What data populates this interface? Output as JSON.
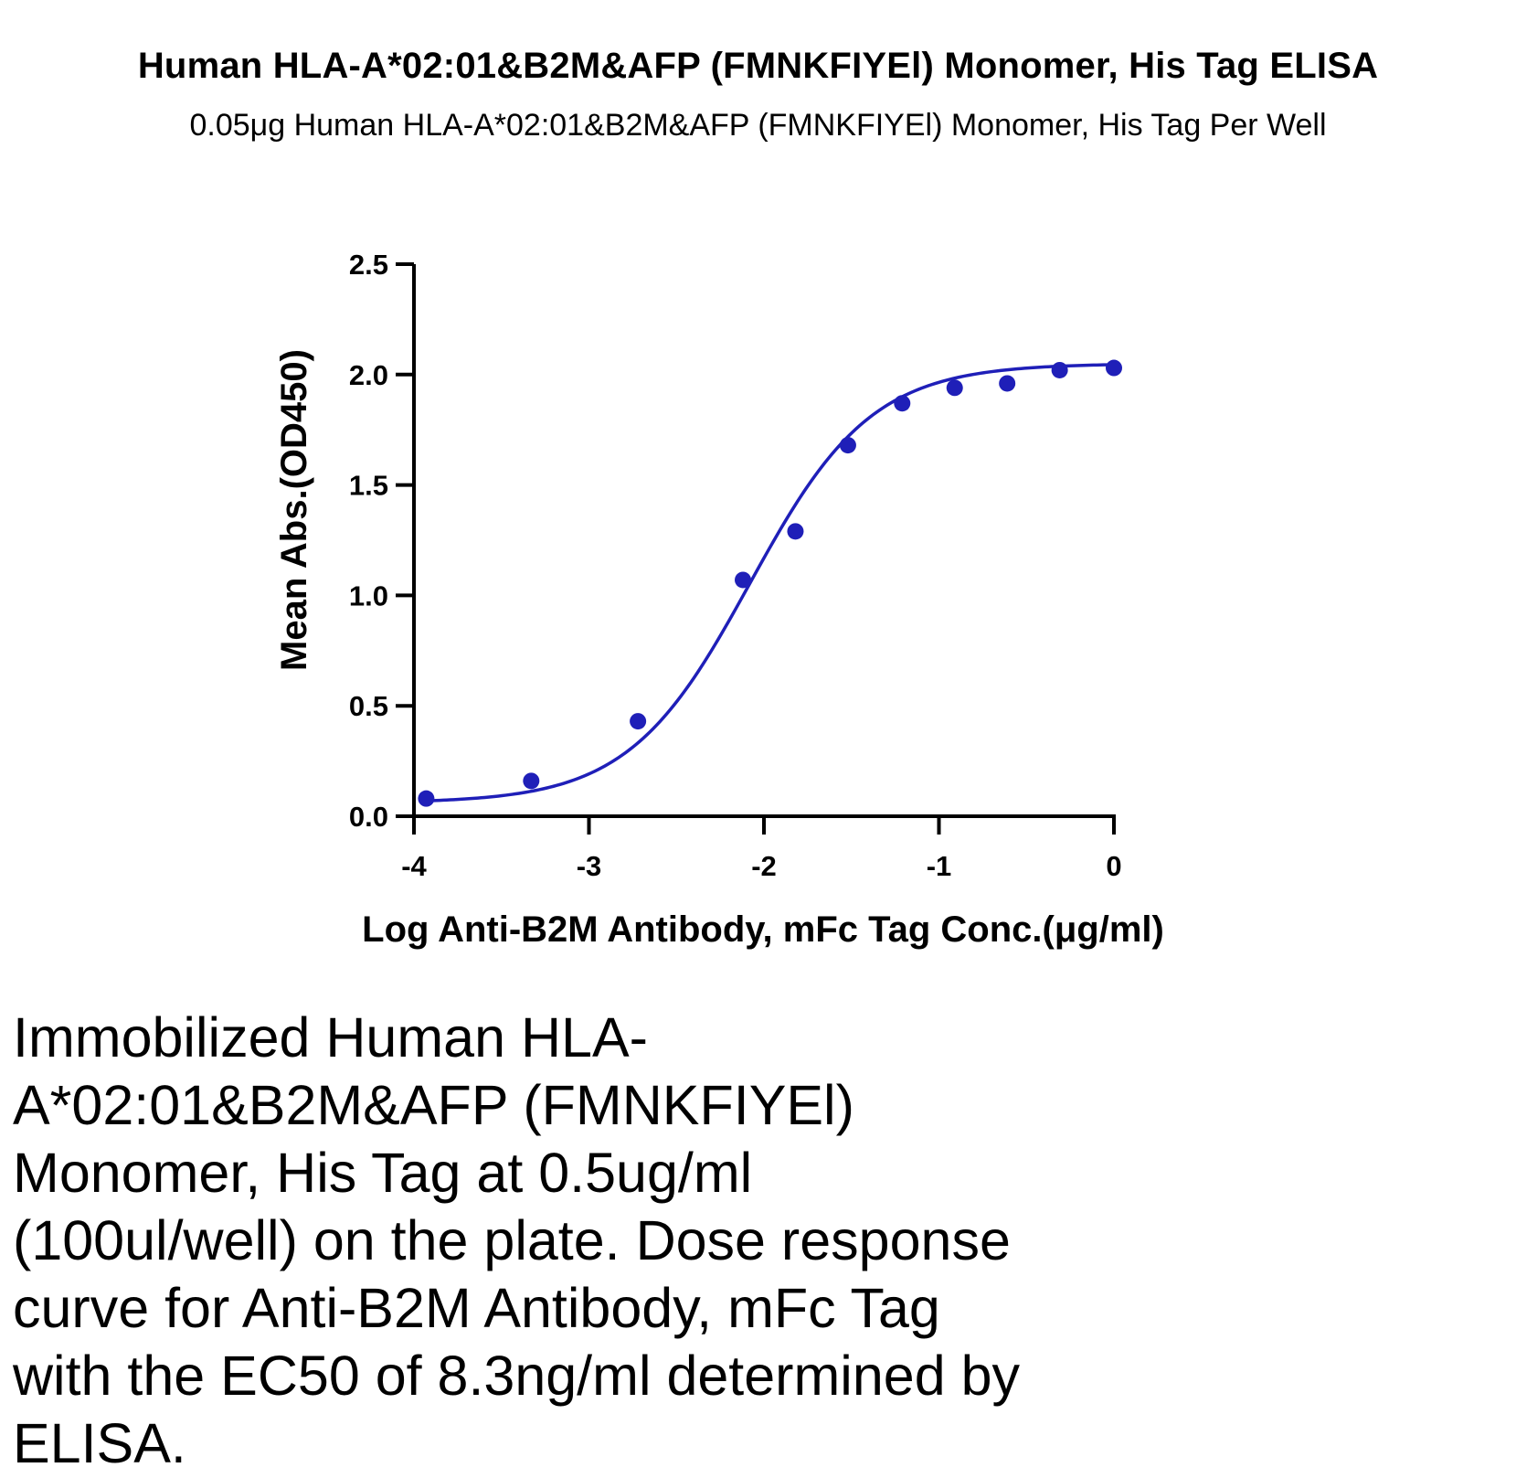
{
  "title": "Human HLA-A*02:01&B2M&AFP (FMNKFIYEl) Monomer, His Tag ELISA",
  "subtitle": "0.05μg Human HLA-A*02:01&B2M&AFP (FMNKFIYEl) Monomer, His Tag Per Well",
  "caption": "Immobilized Human HLA-A*02:01&B2M&AFP (FMNKFIYEl) Monomer, His Tag at 0.5ug/ml (100ul/well) on the plate. Dose response curve for Anti-B2M Antibody, mFc Tag with the EC50 of 8.3ng/ml determined by ELISA.",
  "colors": {
    "series": "#1f1fb8",
    "axis": "#000000"
  },
  "chart_data": {
    "type": "scatter",
    "fit": "4-parameter logistic curve",
    "xlabel": "Log Anti-B2M Antibody, mFc Tag Conc.(μg/ml)",
    "ylabel": "Mean Abs.(OD450)",
    "xlim": [
      -4,
      0
    ],
    "ylim": [
      0,
      2.5
    ],
    "xticks": [
      "-4",
      "-3",
      "-2",
      "-1",
      "0"
    ],
    "yticks": [
      "0.0",
      "0.5",
      "1.0",
      "1.5",
      "2.0",
      "2.5"
    ],
    "grid": false,
    "legend": "none",
    "series": [
      {
        "x": [
          -3.93,
          -3.33,
          -2.72,
          -2.12,
          -1.82,
          -1.52,
          -1.21,
          -0.91,
          -0.61,
          -0.31,
          0.0
        ],
        "y": [
          0.08,
          0.16,
          0.43,
          1.07,
          1.29,
          1.68,
          1.87,
          1.94,
          1.96,
          2.02,
          2.03
        ]
      }
    ],
    "curve": {
      "bottom": 0.06,
      "top": 2.05,
      "log_ec50": -2.08,
      "hill_slope": 1.25
    }
  }
}
